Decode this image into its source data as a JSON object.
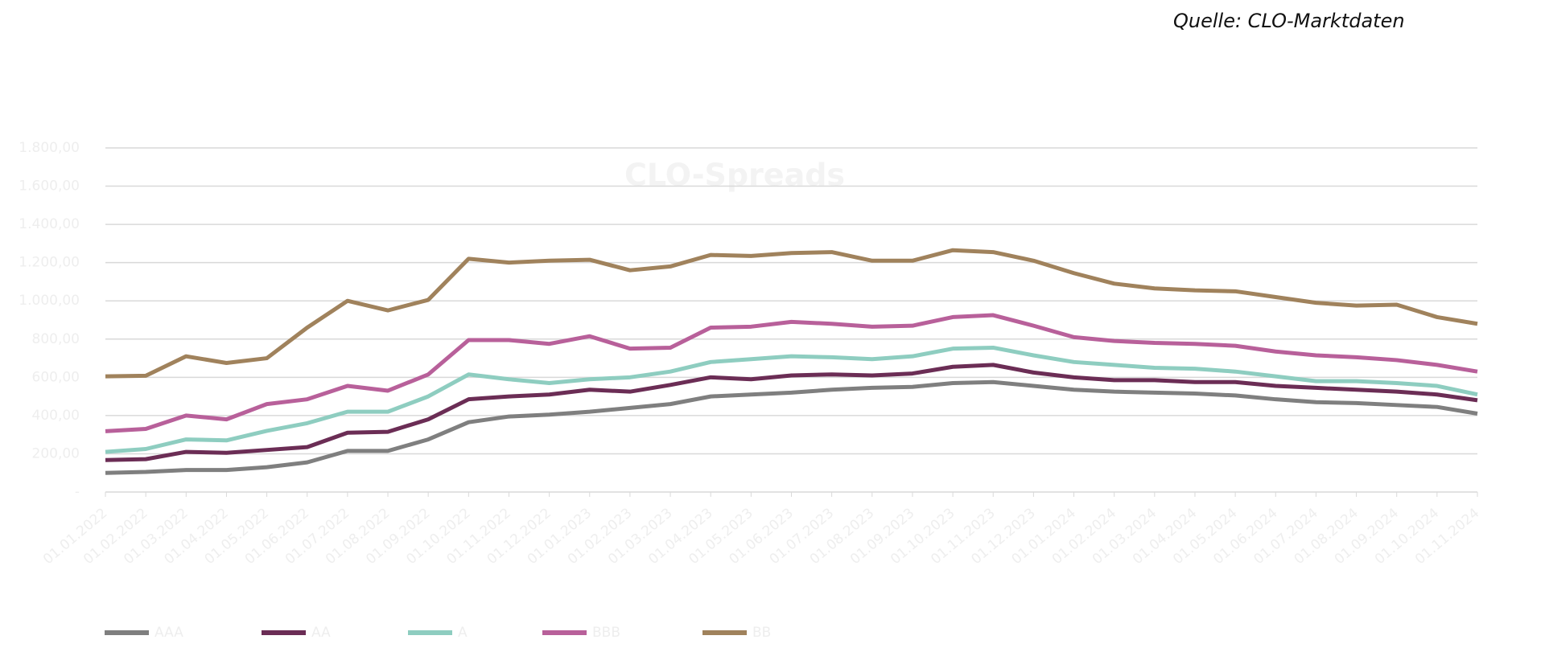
{
  "chart_data": {
    "type": "line",
    "title": "CLO-Spreads",
    "source": "Quelle: CLO-Marktdaten",
    "categories": [
      "01.01.2022",
      "01.02.2022",
      "01.03.2022",
      "01.04.2022",
      "01.05.2022",
      "01.06.2022",
      "01.07.2022",
      "01.08.2022",
      "01.09.2022",
      "01.10.2022",
      "01.11.2022",
      "01.12.2022",
      "01.01.2023",
      "01.02.2023",
      "01.03.2023",
      "01.04.2023",
      "01.05.2023",
      "01.06.2023",
      "01.07.2023",
      "01.08.2023",
      "01.09.2023",
      "01.10.2023",
      "01.11.2023",
      "01.12.2023",
      "01.01.2024",
      "01.02.2024",
      "01.03.2024",
      "01.04.2024",
      "01.05.2024",
      "01.06.2024",
      "01.07.2024",
      "01.08.2024",
      "01.09.2024",
      "01.10.2024",
      "01.11.2024"
    ],
    "series": [
      {
        "name": "AAA",
        "color": "#7f7f7f",
        "values": [
          100,
          105,
          115,
          115,
          130,
          155,
          215,
          215,
          275,
          365,
          395,
          405,
          420,
          440,
          460,
          500,
          510,
          520,
          535,
          545,
          550,
          570,
          575,
          555,
          535,
          525,
          520,
          515,
          505,
          485,
          470,
          465,
          455,
          445,
          410
        ]
      },
      {
        "name": "AA",
        "color": "#6b2d55",
        "values": [
          167,
          172,
          210,
          205,
          220,
          235,
          310,
          315,
          380,
          485,
          500,
          510,
          535,
          525,
          560,
          600,
          590,
          610,
          615,
          610,
          620,
          655,
          665,
          625,
          600,
          585,
          585,
          575,
          575,
          555,
          545,
          535,
          525,
          510,
          480
        ]
      },
      {
        "name": "A",
        "color": "#8ecdc0",
        "values": [
          210,
          225,
          275,
          270,
          320,
          360,
          420,
          420,
          500,
          615,
          590,
          570,
          590,
          600,
          630,
          680,
          695,
          710,
          705,
          695,
          710,
          750,
          755,
          715,
          680,
          665,
          650,
          645,
          630,
          605,
          580,
          580,
          570,
          555,
          510
        ]
      },
      {
        "name": "BBB",
        "color": "#b8609a",
        "values": [
          318,
          330,
          400,
          380,
          460,
          485,
          555,
          530,
          615,
          795,
          795,
          775,
          815,
          750,
          755,
          860,
          865,
          890,
          880,
          865,
          870,
          915,
          925,
          870,
          810,
          790,
          780,
          775,
          765,
          735,
          715,
          705,
          690,
          665,
          630
        ]
      },
      {
        "name": "BB",
        "color": "#a0825c",
        "values": [
          605,
          608,
          710,
          675,
          700,
          860,
          1000,
          950,
          1005,
          1220,
          1200,
          1210,
          1215,
          1160,
          1180,
          1240,
          1235,
          1250,
          1255,
          1210,
          1210,
          1265,
          1255,
          1210,
          1145,
          1090,
          1065,
          1055,
          1050,
          1020,
          990,
          975,
          980,
          915,
          880
        ]
      }
    ],
    "ylim": [
      0,
      1800
    ],
    "yticks": [
      {
        "value": 0,
        "label": "-"
      },
      {
        "value": 200,
        "label": "200,00"
      },
      {
        "value": 400,
        "label": "400,00"
      },
      {
        "value": 600,
        "label": "600,00"
      },
      {
        "value": 800,
        "label": "800,00"
      },
      {
        "value": 1000,
        "label": "1.000,00"
      },
      {
        "value": 1200,
        "label": "1.200,00"
      },
      {
        "value": 1400,
        "label": "1.400,00"
      },
      {
        "value": 1600,
        "label": "1.600,00"
      },
      {
        "value": 1800,
        "label": "1.800,00"
      }
    ],
    "grid": true
  }
}
